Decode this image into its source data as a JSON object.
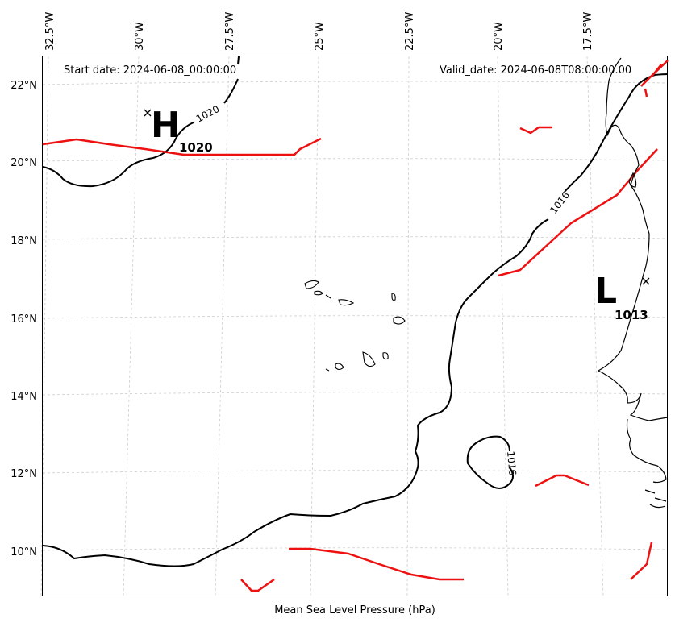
{
  "map": {
    "start_date": "Start date: 2024-06-08_00:00:00",
    "valid_date": "Valid_date: 2024-06-08T08:00:00.00",
    "xlabel": "Mean Sea Level Pressure (hPa)",
    "lon_ticks": [
      "32.5°W",
      "30°W",
      "27.5°W",
      "25°W",
      "22.5°W",
      "20°W",
      "17.5°W"
    ],
    "lat_ticks": [
      "22°N",
      "20°N",
      "18°N",
      "16°N",
      "14°N",
      "12°N",
      "10°N"
    ],
    "high_center": {
      "letter": "H",
      "value": "1020"
    },
    "low_center": {
      "letter": "L",
      "value": "1013"
    },
    "isobar_labels": [
      "1020",
      "1016",
      "1016"
    ],
    "colors": {
      "isobar": "#000000",
      "front": "#ee1111",
      "coast": "#000000",
      "grid": "#cccccc"
    }
  }
}
